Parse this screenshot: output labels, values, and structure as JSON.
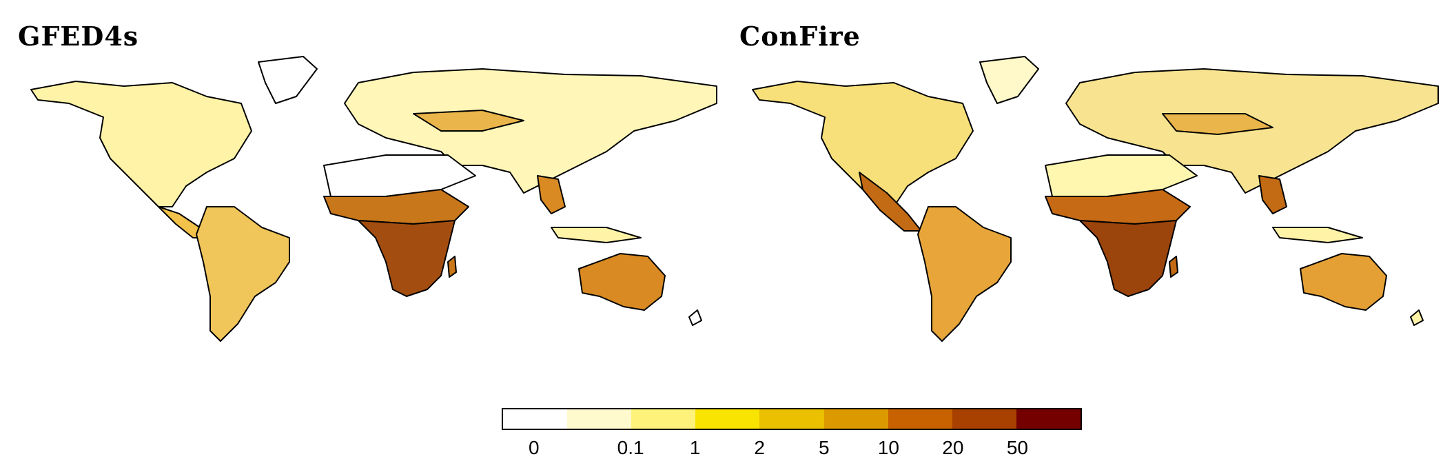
{
  "panels": [
    {
      "title": "GFED4s"
    },
    {
      "title": "ConFire"
    }
  ],
  "legend": {
    "colors": [
      "#ffffff",
      "#fffacd",
      "#fff27a",
      "#f8e400",
      "#eac000",
      "#dd9a00",
      "#c86200",
      "#a84000",
      "#740000"
    ],
    "ticks": [
      "0",
      "0.1",
      "1",
      "2",
      "5",
      "10",
      "20",
      "50"
    ]
  },
  "map_colors": {
    "low": "#fff6b0",
    "mid": "#f2c84b",
    "high": "#d67a12",
    "max": "#8a2a00",
    "border": "#000000"
  }
}
